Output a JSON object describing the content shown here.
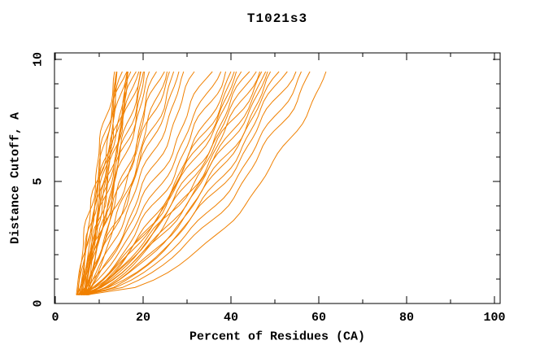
{
  "title": "T1021s3",
  "chart_data": {
    "type": "line",
    "title": "T1021s3",
    "xlabel": "Percent of Residues (CA)",
    "ylabel": "Distance Cutoff, A",
    "xlim": [
      0,
      100
    ],
    "ylim": [
      0,
      10
    ],
    "x_major_ticks": [
      0,
      20,
      40,
      60,
      80,
      100
    ],
    "x_minor_ticks": [
      10,
      30,
      50,
      70,
      90
    ],
    "y_major_ticks": [
      0,
      5,
      10
    ],
    "y_minor_ticks": [
      1,
      2,
      3,
      4,
      6,
      7,
      8,
      9
    ],
    "grid": false,
    "legend": "none",
    "line_color": "#f08000",
    "frame_color": "#000000",
    "d_range": [
      0.35,
      9.5
    ],
    "series_note": "Bundle of ~46 unlabeled model-accuracy curves (percent of CA residues vs distance cutoff). Each curve rises from ~4-8% at 0.35 A to its end percent at 9.5 A; s=start %, e=end %, k=shape exponent, a=wiggle amplitude, ph=wiggle phase.",
    "curves": [
      {
        "s": 5.0,
        "e": 13.5,
        "k": 1.15,
        "a": 0.5,
        "ph": 0.3
      },
      {
        "s": 5.5,
        "e": 14.0,
        "k": 1.05,
        "a": 0.6,
        "ph": 1.1
      },
      {
        "s": 6.0,
        "e": 14.4,
        "k": 1.2,
        "a": 0.4,
        "ph": 2.0
      },
      {
        "s": 6.5,
        "e": 14.8,
        "k": 1.0,
        "a": 0.7,
        "ph": 2.9
      },
      {
        "s": 7.0,
        "e": 15.2,
        "k": 1.1,
        "a": 0.5,
        "ph": 3.7
      },
      {
        "s": 5.2,
        "e": 15.6,
        "k": 1.25,
        "a": 0.6,
        "ph": 4.4
      },
      {
        "s": 5.8,
        "e": 16.0,
        "k": 1.1,
        "a": 0.4,
        "ph": 5.2
      },
      {
        "s": 6.3,
        "e": 16.4,
        "k": 0.95,
        "a": 0.7,
        "ph": 0.8
      },
      {
        "s": 6.8,
        "e": 16.8,
        "k": 1.15,
        "a": 0.5,
        "ph": 1.6
      },
      {
        "s": 7.3,
        "e": 17.2,
        "k": 1.05,
        "a": 0.6,
        "ph": 2.4
      },
      {
        "s": 4.8,
        "e": 17.6,
        "k": 1.2,
        "a": 0.5,
        "ph": 3.2
      },
      {
        "s": 5.4,
        "e": 18.0,
        "k": 1.0,
        "a": 0.6,
        "ph": 4.0
      },
      {
        "s": 6.1,
        "e": 18.5,
        "k": 1.1,
        "a": 0.4,
        "ph": 4.8
      },
      {
        "s": 6.6,
        "e": 19.0,
        "k": 1.18,
        "a": 0.6,
        "ph": 5.6
      },
      {
        "s": 7.1,
        "e": 19.5,
        "k": 1.02,
        "a": 0.5,
        "ph": 0.5
      },
      {
        "s": 7.6,
        "e": 20.2,
        "k": 1.12,
        "a": 0.6,
        "ph": 1.3
      },
      {
        "s": 5.0,
        "e": 21.0,
        "k": 0.95,
        "a": 0.7,
        "ph": 2.1
      },
      {
        "s": 5.6,
        "e": 22.0,
        "k": 1.02,
        "a": 0.5,
        "ph": 2.9
      },
      {
        "s": 6.2,
        "e": 23.0,
        "k": 0.9,
        "a": 0.6,
        "ph": 3.7
      },
      {
        "s": 6.7,
        "e": 24.0,
        "k": 1.0,
        "a": 0.7,
        "ph": 4.5
      },
      {
        "s": 7.2,
        "e": 25.0,
        "k": 0.88,
        "a": 0.5,
        "ph": 5.3
      },
      {
        "s": 4.9,
        "e": 26.0,
        "k": 0.97,
        "a": 0.6,
        "ph": 0.2
      },
      {
        "s": 5.5,
        "e": 27.0,
        "k": 0.85,
        "a": 0.7,
        "ph": 1.0
      },
      {
        "s": 6.0,
        "e": 28.5,
        "k": 0.95,
        "a": 0.5,
        "ph": 1.8
      },
      {
        "s": 6.5,
        "e": 30.0,
        "k": 0.9,
        "a": 0.6,
        "ph": 2.6
      },
      {
        "s": 7.0,
        "e": 32.0,
        "k": 0.87,
        "a": 0.7,
        "ph": 3.4
      },
      {
        "s": 5.2,
        "e": 35.0,
        "k": 0.8,
        "a": 0.8,
        "ph": 4.2
      },
      {
        "s": 5.8,
        "e": 37.0,
        "k": 0.78,
        "a": 0.6,
        "ph": 5.0
      },
      {
        "s": 6.3,
        "e": 38.5,
        "k": 0.75,
        "a": 0.8,
        "ph": 5.8
      },
      {
        "s": 6.8,
        "e": 40.0,
        "k": 0.72,
        "a": 0.6,
        "ph": 0.6
      },
      {
        "s": 7.4,
        "e": 41.0,
        "k": 0.74,
        "a": 0.8,
        "ph": 1.4
      },
      {
        "s": 5.1,
        "e": 42.0,
        "k": 0.7,
        "a": 0.7,
        "ph": 2.2
      },
      {
        "s": 5.7,
        "e": 43.0,
        "k": 0.72,
        "a": 0.6,
        "ph": 3.0
      },
      {
        "s": 6.2,
        "e": 44.0,
        "k": 0.68,
        "a": 0.8,
        "ph": 3.8
      },
      {
        "s": 6.7,
        "e": 45.0,
        "k": 0.7,
        "a": 0.6,
        "ph": 4.6
      },
      {
        "s": 7.2,
        "e": 46.0,
        "k": 0.66,
        "a": 0.7,
        "ph": 5.4
      },
      {
        "s": 4.8,
        "e": 47.0,
        "k": 0.68,
        "a": 0.8,
        "ph": 0.4
      },
      {
        "s": 5.4,
        "e": 48.0,
        "k": 0.64,
        "a": 0.6,
        "ph": 1.2
      },
      {
        "s": 5.9,
        "e": 49.0,
        "k": 0.66,
        "a": 0.7,
        "ph": 2.0
      },
      {
        "s": 6.4,
        "e": 50.0,
        "k": 0.62,
        "a": 0.8,
        "ph": 2.8
      },
      {
        "s": 6.9,
        "e": 51.0,
        "k": 0.64,
        "a": 0.6,
        "ph": 3.6
      },
      {
        "s": 7.5,
        "e": 52.0,
        "k": 0.6,
        "a": 0.7,
        "ph": 4.4
      },
      {
        "s": 5.3,
        "e": 54.0,
        "k": 0.58,
        "a": 0.8,
        "ph": 5.2
      },
      {
        "s": 5.9,
        "e": 56.0,
        "k": 0.55,
        "a": 0.7,
        "ph": 0.1
      },
      {
        "s": 6.4,
        "e": 58.0,
        "k": 0.52,
        "a": 0.8,
        "ph": 0.9
      },
      {
        "s": 7.0,
        "e": 62.0,
        "k": 0.47,
        "a": 0.6,
        "ph": 1.7
      }
    ]
  }
}
